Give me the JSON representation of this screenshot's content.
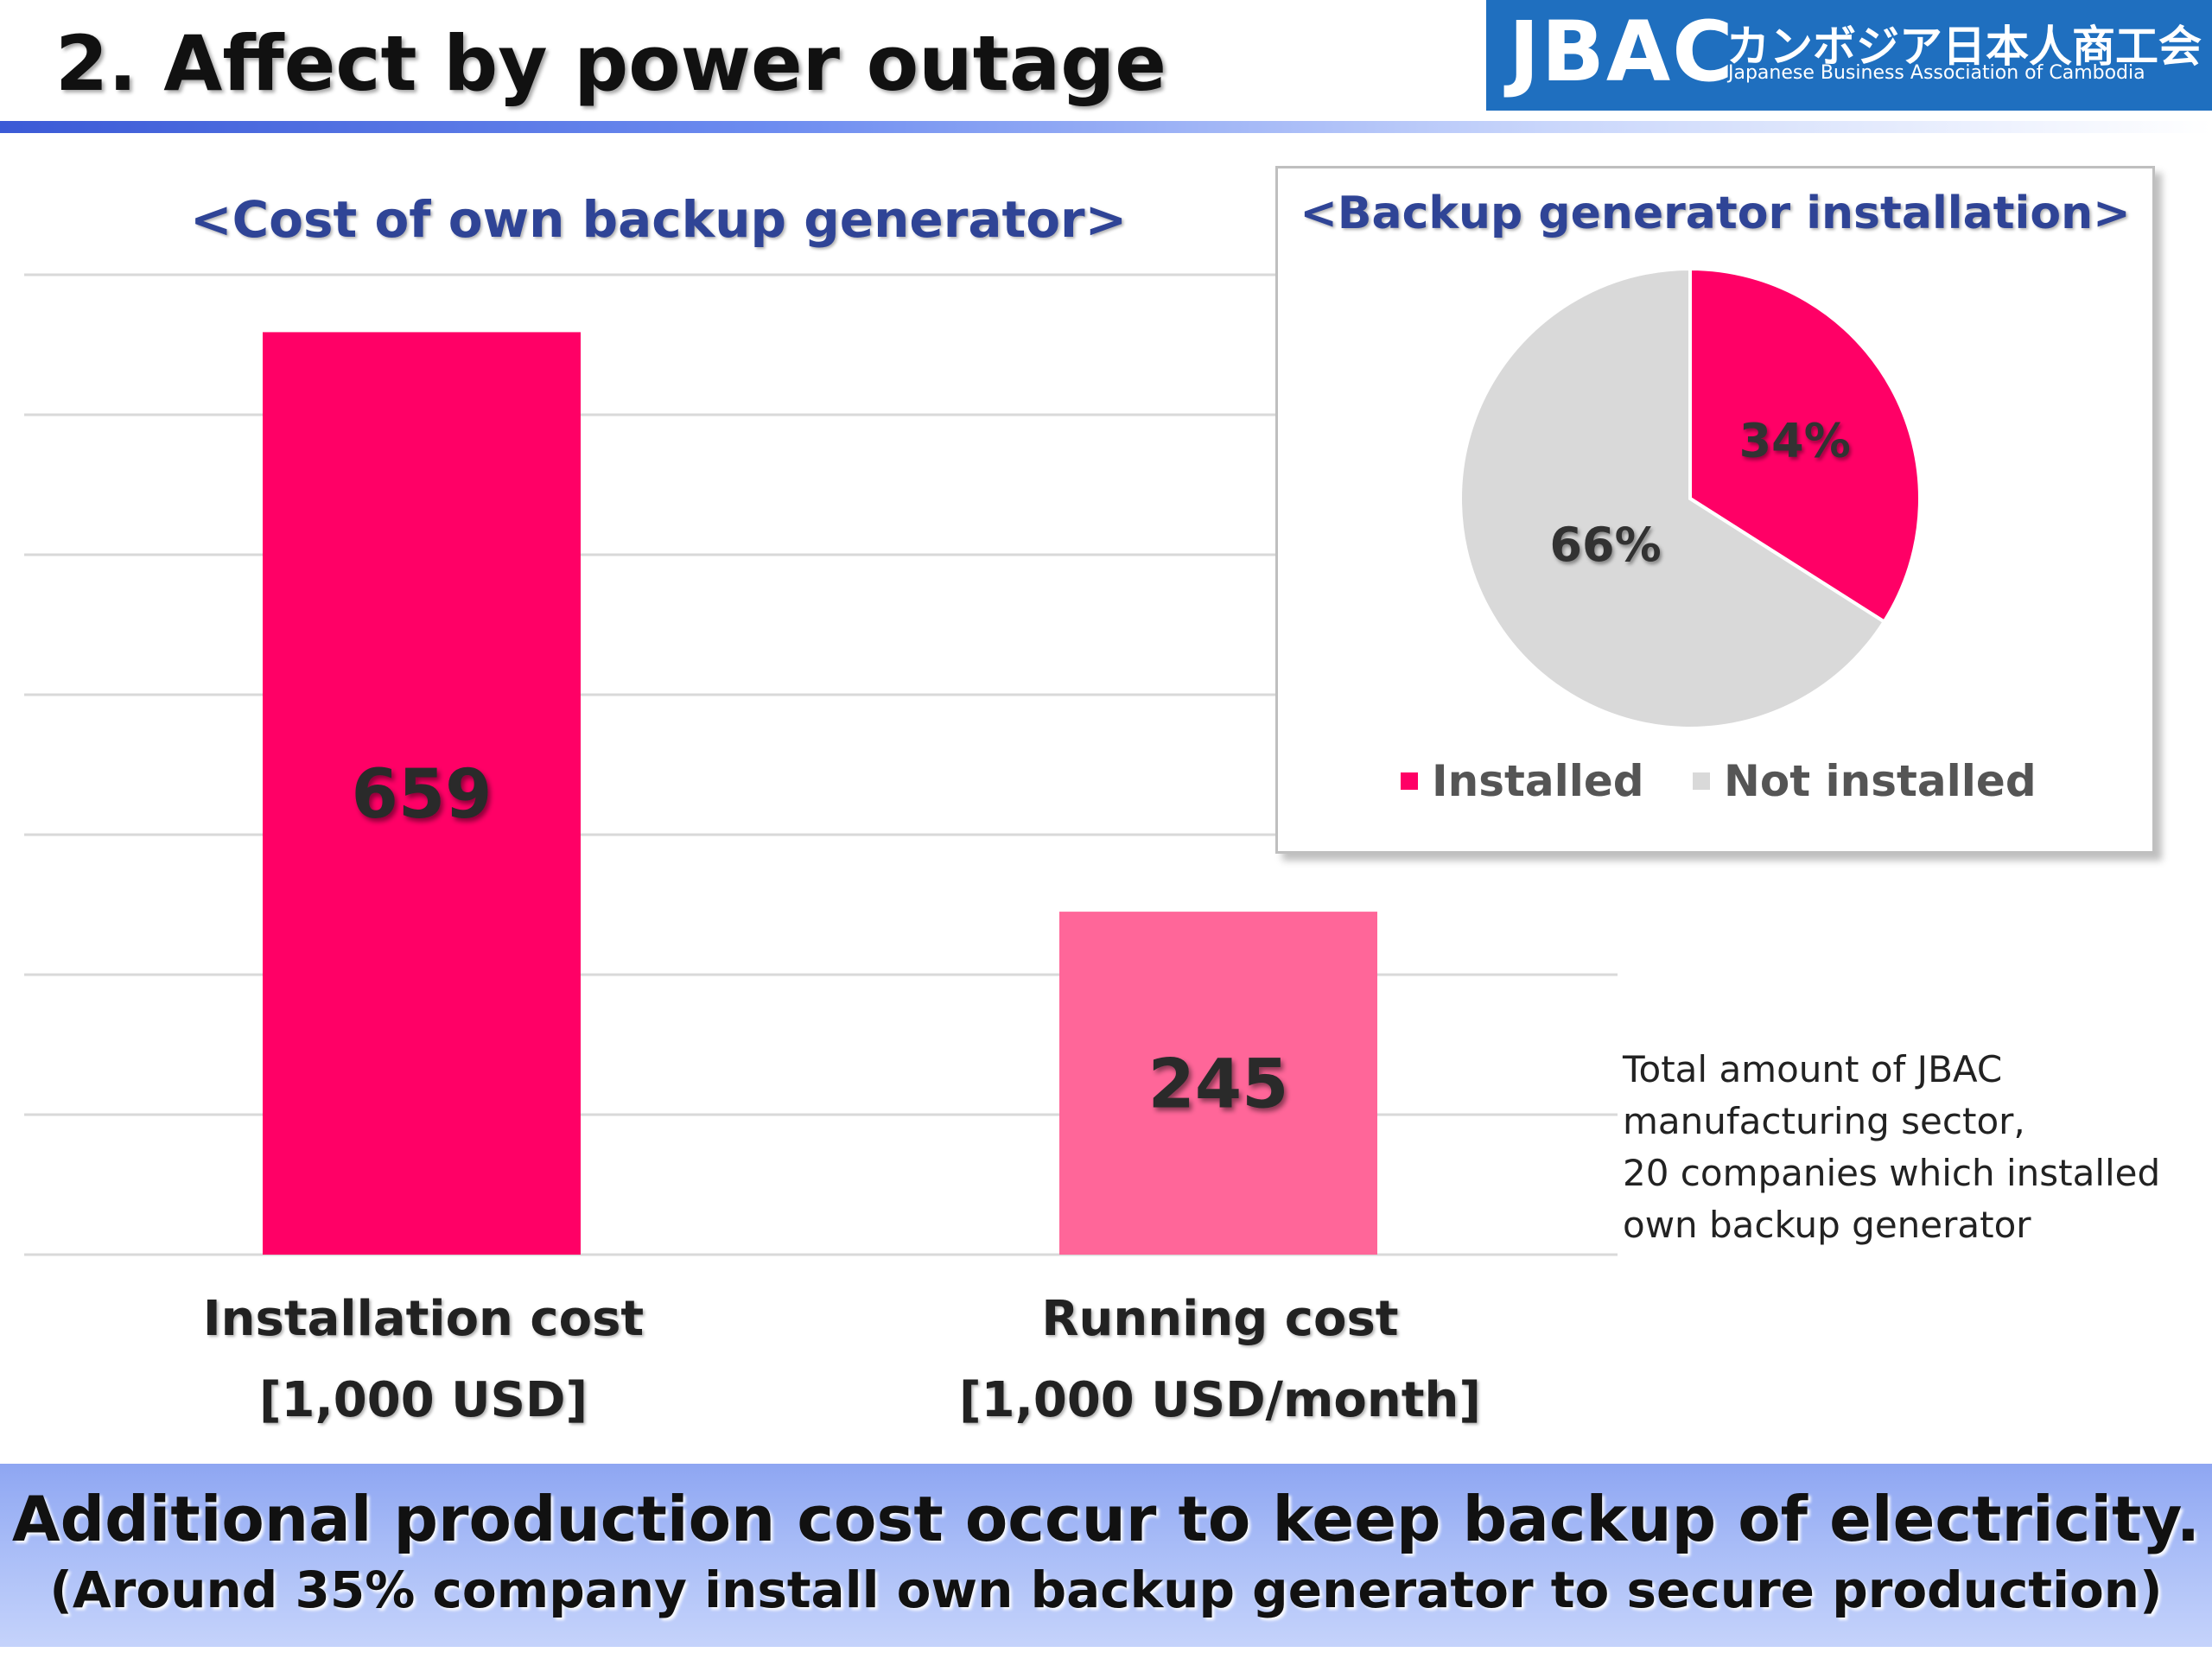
{
  "header": {
    "title": "2. Affect by power outage",
    "logo": {
      "main": "JBAC",
      "jp": "カンボジア日本人商工会",
      "en": "Japanese Business Association of Cambodia"
    }
  },
  "colors": {
    "installation_bar": "#ff0066",
    "running_bar": "#ff6699",
    "pie_installed": "#ff0066",
    "pie_not_installed": "#d9d9d9",
    "title_blue": "#2f4496"
  },
  "chart_data": [
    {
      "type": "bar",
      "title": "<Cost of own backup generator>",
      "categories": [
        "Installation cost",
        "Running cost"
      ],
      "category_units": [
        "[1,000 USD]",
        "[1,000 USD/month]"
      ],
      "values": [
        659,
        245
      ],
      "data_labels": [
        "659",
        "245"
      ],
      "ylim": [
        0,
        700
      ],
      "grid": true
    },
    {
      "type": "pie",
      "title": "<Backup generator installation>",
      "labels": [
        "Installed",
        "Not installed"
      ],
      "values": [
        34,
        66
      ],
      "data_labels": [
        "34%",
        "66%"
      ],
      "legend": "bottom"
    }
  ],
  "note": {
    "lines": [
      "Total amount of JBAC",
      "manufacturing sector,",
      "20 companies which installed",
      "own backup generator"
    ]
  },
  "banner": {
    "main": "Additional production cost occur to keep backup of electricity.",
    "sub": "(Around 35% company install own backup generator to secure production)"
  }
}
